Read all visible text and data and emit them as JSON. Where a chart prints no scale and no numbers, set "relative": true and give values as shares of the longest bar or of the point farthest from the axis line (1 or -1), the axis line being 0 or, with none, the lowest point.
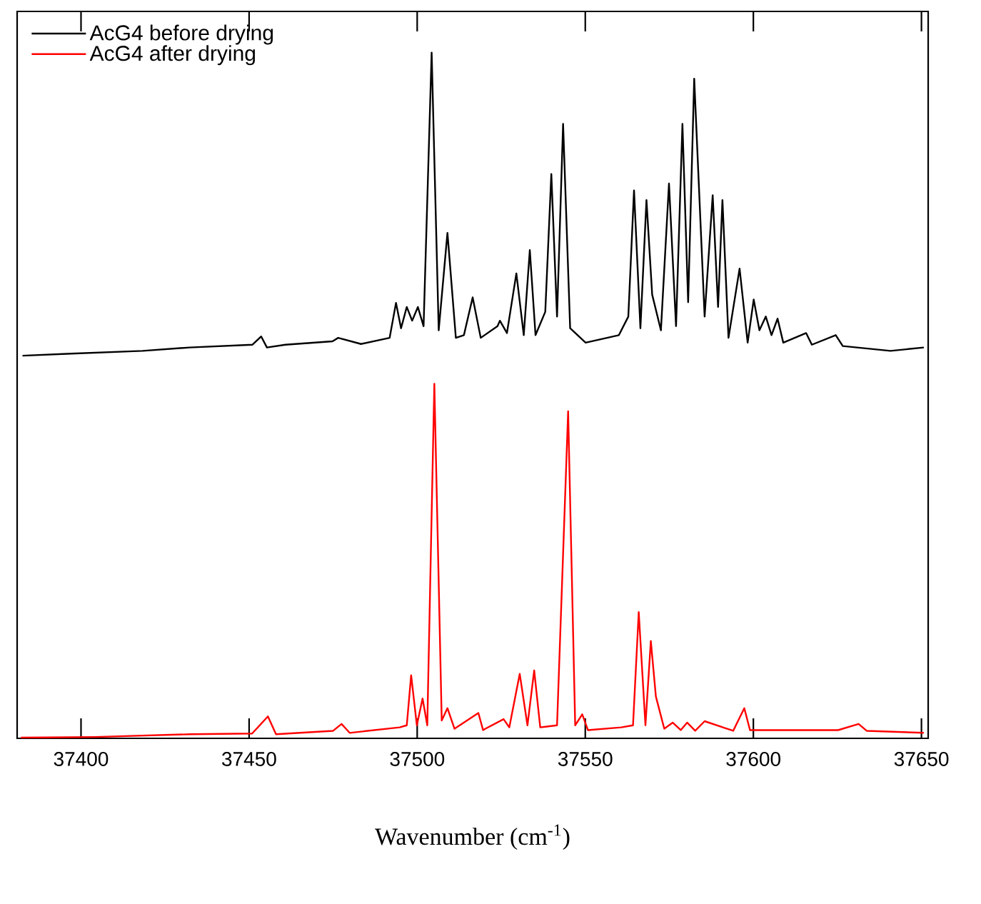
{
  "chart_data": {
    "type": "line",
    "relative": true,
    "xlabel": "Wavenumber (cm$^{-1}$)",
    "xlim": [
      37381,
      37652
    ],
    "xticks": [
      37400,
      37450,
      37500,
      37550,
      37600,
      37650
    ],
    "legend": "top left",
    "grid": false,
    "series": [
      {
        "name": "AcG4 before drying",
        "color": "#000000",
        "x": [
          37382.6,
          37397.0,
          37418.3,
          37432.3,
          37451.0,
          37453.6,
          37455.3,
          37460.8,
          37474.8,
          37476.5,
          37483.3,
          37491.8,
          37493.7,
          37495.2,
          37496.9,
          37498.5,
          37500.2,
          37501.9,
          37504.3,
          37506.4,
          37509.0,
          37511.5,
          37513.9,
          37516.5,
          37518.9,
          37523.9,
          37524.6,
          37526.7,
          37529.5,
          37531.7,
          37533.5,
          37535.2,
          37538.1,
          37539.9,
          37541.6,
          37543.4,
          37545.5,
          37550.1,
          37560.0,
          37562.8,
          37564.5,
          37566.4,
          37568.2,
          37569.9,
          37572.5,
          37574.9,
          37577.0,
          37578.9,
          37580.6,
          37582.4,
          37585.5,
          37587.9,
          37589.5,
          37590.8,
          37592.6,
          37595.9,
          37598.3,
          37600.1,
          37601.8,
          37603.7,
          37605.4,
          37607.2,
          37608.9,
          37615.7,
          37617.4,
          37624.5,
          37626.6,
          37640.8,
          37650.7
        ],
        "values": [
          0.558,
          0.561,
          0.565,
          0.57,
          0.574,
          0.586,
          0.57,
          0.574,
          0.579,
          0.584,
          0.575,
          0.584,
          0.635,
          0.598,
          0.629,
          0.609,
          0.629,
          0.601,
          1,
          0.595,
          0.737,
          0.584,
          0.588,
          0.643,
          0.584,
          0.601,
          0.609,
          0.591,
          0.678,
          0.588,
          0.712,
          0.588,
          0.622,
          0.823,
          0.615,
          0.896,
          0.598,
          0.577,
          0.588,
          0.615,
          0.799,
          0.598,
          0.785,
          0.647,
          0.595,
          0.809,
          0.601,
          0.896,
          0.636,
          0.962,
          0.615,
          0.792,
          0.629,
          0.785,
          0.584,
          0.685,
          0.577,
          0.64,
          0.595,
          0.615,
          0.588,
          0.612,
          0.577,
          0.591,
          0.574,
          0.588,
          0.572,
          0.565,
          0.57
        ]
      },
      {
        "name": "AcG4 after drying",
        "color": "#ff0000",
        "x": [
          37382.1,
          37404.1,
          37432.4,
          37450.9,
          37455.6,
          37458.0,
          37475.0,
          37477.5,
          37479.9,
          37494.8,
          37496.9,
          37498.2,
          37499.9,
          37501.6,
          37503.0,
          37505.1,
          37507.3,
          37509.0,
          37511.1,
          37518.2,
          37519.6,
          37520.3,
          37525.7,
          37527.4,
          37530.5,
          37532.8,
          37534.8,
          37536.6,
          37541.6,
          37544.9,
          37547.0,
          37549.1,
          37550.8,
          37560.7,
          37564.2,
          37565.9,
          37567.9,
          37569.5,
          37571.0,
          37573.5,
          37576.0,
          37578.4,
          37580.3,
          37582.7,
          37585.5,
          37594.0,
          37597.3,
          37599.0,
          37611.0,
          37625.2,
          37631.3,
          37633.7,
          37650.7
        ],
        "values": [
          0.001,
          0.002,
          0.006,
          0.007,
          0.032,
          0.006,
          0.011,
          0.021,
          0.008,
          0.016,
          0.019,
          0.092,
          0.019,
          0.058,
          0.019,
          0.517,
          0.026,
          0.044,
          0.014,
          0.037,
          0.012,
          0.014,
          0.028,
          0.016,
          0.094,
          0.019,
          0.099,
          0.016,
          0.019,
          0.477,
          0.019,
          0.035,
          0.012,
          0.016,
          0.019,
          0.184,
          0.019,
          0.142,
          0.061,
          0.014,
          0.023,
          0.012,
          0.023,
          0.011,
          0.025,
          0.011,
          0.044,
          0.012,
          0.012,
          0.012,
          0.021,
          0.011,
          0.008
        ]
      }
    ]
  }
}
